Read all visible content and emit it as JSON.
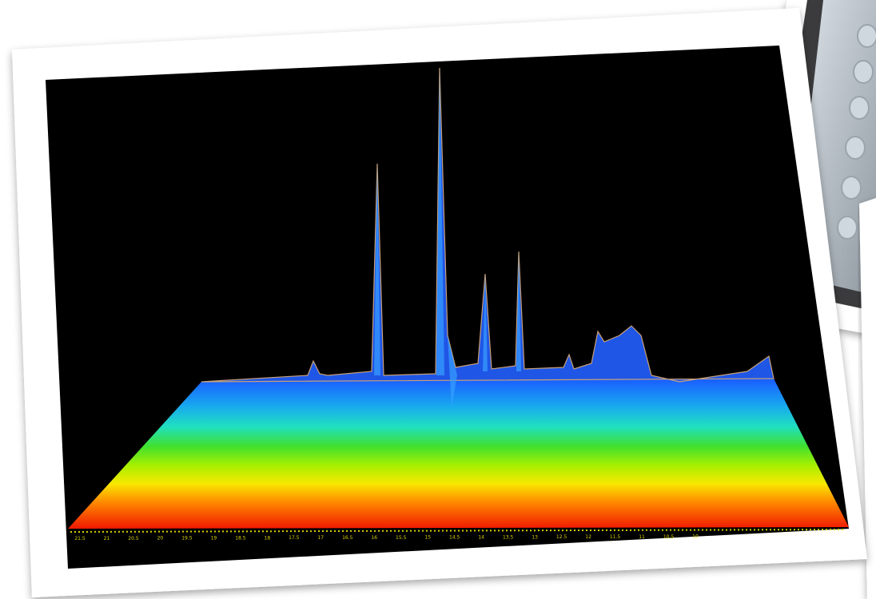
{
  "axis_labels": [
    "21.5",
    "21",
    "20.5",
    "20",
    "19.5",
    "19",
    "18.5",
    "18",
    "17.5",
    "17",
    "16.5",
    "16",
    "15.5",
    "15",
    "14.5",
    "14",
    "13.5",
    "13",
    "12.5",
    "12",
    "11.5",
    "11",
    "10.5",
    "10"
  ]
}
